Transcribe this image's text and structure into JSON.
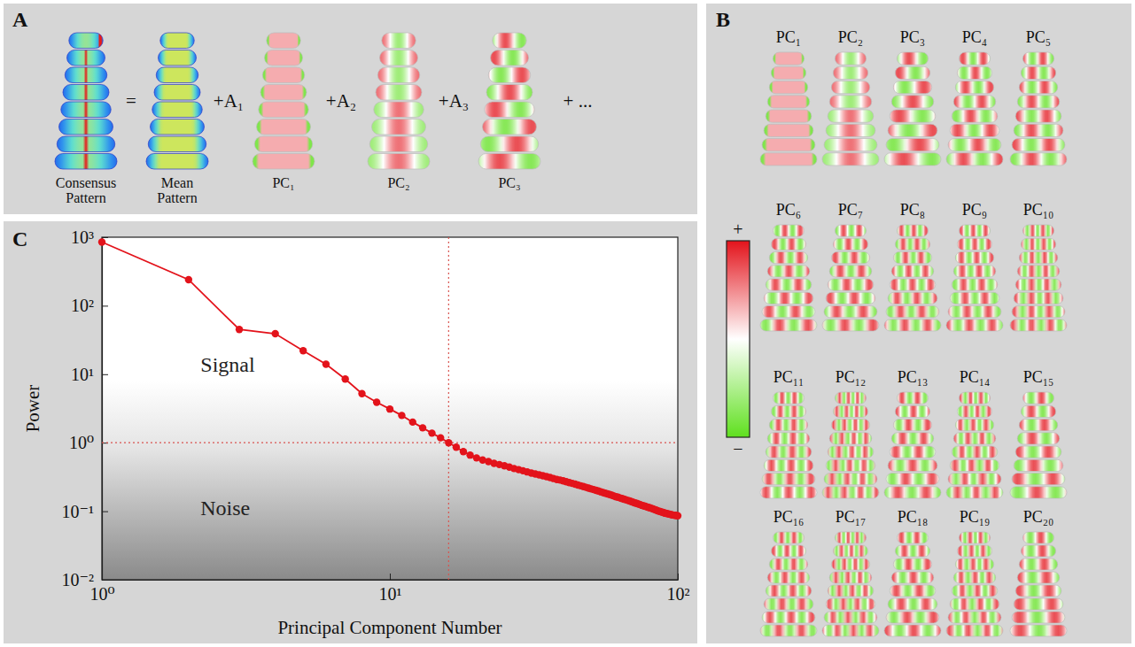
{
  "panel_labels": [
    "A",
    "B",
    "C"
  ],
  "equation": {
    "terms": [
      "Consensus Pattern",
      "Mean Pattern",
      "PC₁",
      "PC₂",
      "PC₃"
    ],
    "operators": [
      "=",
      "+A₁",
      "+A₂",
      "+A₃",
      "+ ..."
    ]
  },
  "components": {
    "labels": [
      "PC₁",
      "PC₂",
      "PC₃",
      "PC₄",
      "PC₅",
      "PC₆",
      "PC₇",
      "PC₈",
      "PC₉",
      "PC₁₀",
      "PC₁₁",
      "PC₁₂",
      "PC₁₃",
      "PC₁₄",
      "PC₁₅",
      "PC₁₆",
      "PC₁₇",
      "PC₁₈",
      "PC₁₉",
      "PC₂₀"
    ],
    "colorbar": {
      "max_label": "+",
      "min_label": "−"
    }
  },
  "chart_data": {
    "type": "line",
    "xlabel": "Principal Component Number",
    "ylabel": "Power",
    "log": true,
    "grid": false,
    "color": "#e3131b",
    "marker": "circle",
    "line_style": "solid",
    "xlim": [
      1,
      100
    ],
    "ylim": [
      0.01,
      1000
    ],
    "xticks": [
      {
        "value": 1,
        "label": "10⁰"
      },
      {
        "value": 10,
        "label": "10¹"
      },
      {
        "value": 100,
        "label": "10²"
      }
    ],
    "yticks": [
      {
        "value": 0.01,
        "label": "10⁻²"
      },
      {
        "value": 0.1,
        "label": "10⁻¹"
      },
      {
        "value": 1,
        "label": "10⁰"
      },
      {
        "value": 10,
        "label": "10¹"
      },
      {
        "value": 100,
        "label": "10²"
      },
      {
        "value": 1000,
        "label": "10³"
      }
    ],
    "reference_lines": [
      {
        "axis": "x",
        "value": 16
      },
      {
        "axis": "y",
        "value": 1
      }
    ],
    "annotations": [
      {
        "text": "Signal",
        "x": 2.2,
        "y": 11
      },
      {
        "text": "Noise",
        "x": 2.2,
        "y": 0.087
      }
    ],
    "x": [
      1,
      2,
      3,
      4,
      5,
      6,
      7,
      8,
      9,
      10,
      11,
      12,
      13,
      14,
      15,
      16,
      17,
      18,
      19,
      20,
      21,
      22,
      23,
      24,
      25,
      26,
      27,
      28,
      29,
      30,
      31,
      32,
      33,
      34,
      35,
      36,
      37,
      38,
      39,
      40,
      41,
      42,
      43,
      44,
      45,
      46,
      47,
      48,
      49,
      50,
      51,
      52,
      53,
      54,
      55,
      56,
      57,
      58,
      59,
      60,
      61,
      62,
      63,
      64,
      65,
      66,
      67,
      68,
      69,
      70,
      71,
      72,
      73,
      74,
      75,
      76,
      77,
      78,
      79,
      80,
      81,
      82,
      83,
      84,
      85,
      86,
      87,
      88,
      89,
      90,
      91,
      92,
      93,
      94,
      95,
      96,
      97,
      98,
      99,
      100
    ],
    "values": [
      850,
      240,
      45,
      39,
      22,
      14,
      8.5,
      5.2,
      3.9,
      3.1,
      2.5,
      2.0,
      1.65,
      1.38,
      1.18,
      1.0,
      0.86,
      0.74,
      0.66,
      0.6,
      0.56,
      0.53,
      0.5,
      0.48,
      0.46,
      0.44,
      0.42,
      0.405,
      0.39,
      0.375,
      0.36,
      0.35,
      0.34,
      0.33,
      0.32,
      0.31,
      0.3,
      0.29,
      0.285,
      0.278,
      0.27,
      0.262,
      0.255,
      0.248,
      0.241,
      0.235,
      0.229,
      0.223,
      0.217,
      0.212,
      0.207,
      0.202,
      0.197,
      0.192,
      0.187,
      0.183,
      0.179,
      0.175,
      0.171,
      0.167,
      0.163,
      0.16,
      0.156,
      0.153,
      0.15,
      0.147,
      0.144,
      0.141,
      0.138,
      0.135,
      0.132,
      0.13,
      0.127,
      0.125,
      0.122,
      0.12,
      0.118,
      0.116,
      0.114,
      0.112,
      0.11,
      0.108,
      0.106,
      0.104,
      0.102,
      0.1,
      0.099,
      0.097,
      0.096,
      0.094,
      0.093,
      0.092,
      0.091,
      0.09,
      0.089,
      0.088,
      0.0875,
      0.087,
      0.0865,
      0.086
    ]
  }
}
